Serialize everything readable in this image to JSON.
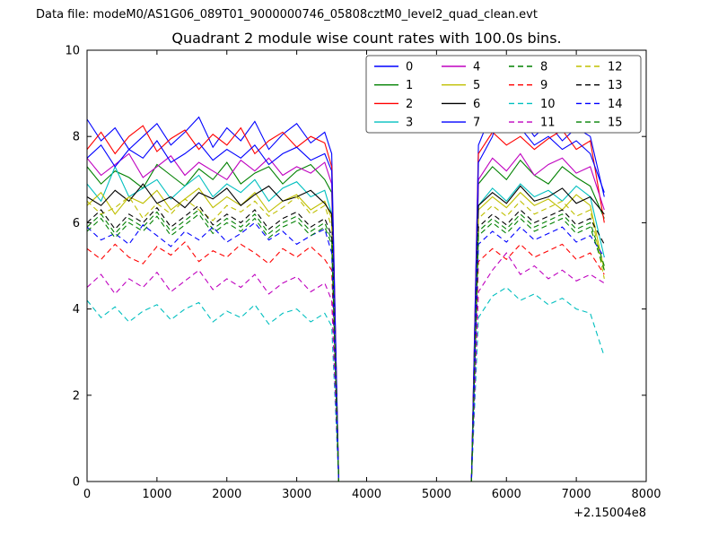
{
  "header": {
    "data_file": "Data file: modeM0/AS1G06_089T01_9000000746_05808cztM0_level2_quad_clean.evt"
  },
  "chart_data": {
    "type": "line",
    "title": "Quadrant 2 module wise count rates with 100.0s bins.",
    "xlabel": "",
    "ylabel": "",
    "xlim": [
      0,
      8000
    ],
    "ylim": [
      0,
      10
    ],
    "xticks": [
      0,
      1000,
      2000,
      3000,
      4000,
      5000,
      6000,
      7000,
      8000
    ],
    "yticks": [
      0,
      2,
      4,
      6,
      8,
      10
    ],
    "x_axis_offset": "+2.15004e8",
    "grid": false,
    "legend": {
      "position": "upper center-right",
      "columns": 4
    },
    "x": [
      0,
      200,
      400,
      600,
      800,
      1000,
      1200,
      1400,
      1600,
      1800,
      2000,
      2200,
      2400,
      2600,
      2800,
      3000,
      3200,
      3400,
      3500,
      3600,
      5500,
      5600,
      5800,
      6000,
      6200,
      6400,
      6600,
      6800,
      7000,
      7200,
      7400
    ],
    "series": [
      {
        "name": "0",
        "color": "#0000ff",
        "dash": "solid",
        "values": [
          8.4,
          7.9,
          8.2,
          7.7,
          8.0,
          8.3,
          7.8,
          8.1,
          8.45,
          7.75,
          8.2,
          7.9,
          8.35,
          7.7,
          8.05,
          8.3,
          7.85,
          8.1,
          7.6,
          0,
          0,
          7.8,
          8.6,
          8.2,
          8.45,
          8.0,
          8.3,
          7.9,
          8.2,
          8.0,
          6.6
        ]
      },
      {
        "name": "1",
        "color": "#008000",
        "dash": "solid",
        "values": [
          7.3,
          6.9,
          7.2,
          7.05,
          6.8,
          7.35,
          7.1,
          6.85,
          7.25,
          7.0,
          7.4,
          6.9,
          7.15,
          7.3,
          6.9,
          7.2,
          7.35,
          7.0,
          6.7,
          0,
          0,
          6.9,
          7.3,
          7.0,
          7.45,
          7.1,
          6.9,
          7.3,
          7.05,
          6.85,
          6.1
        ]
      },
      {
        "name": "2",
        "color": "#ff0000",
        "dash": "solid",
        "values": [
          7.7,
          8.1,
          7.6,
          8.0,
          8.25,
          7.65,
          7.95,
          8.15,
          7.7,
          8.05,
          7.8,
          8.2,
          7.6,
          7.9,
          8.1,
          7.75,
          8.0,
          7.85,
          7.3,
          0,
          0,
          7.6,
          8.1,
          7.8,
          8.0,
          7.7,
          7.95,
          8.15,
          7.7,
          7.9,
          6.0
        ]
      },
      {
        "name": "3",
        "color": "#00bfbf",
        "dash": "solid",
        "values": [
          6.9,
          6.5,
          7.3,
          6.6,
          6.8,
          7.0,
          6.55,
          6.85,
          7.1,
          6.6,
          6.9,
          6.7,
          7.0,
          6.5,
          6.8,
          6.95,
          6.6,
          6.75,
          6.2,
          0,
          0,
          6.4,
          6.8,
          6.5,
          6.9,
          6.6,
          6.75,
          6.5,
          6.85,
          6.6,
          5.2
        ]
      },
      {
        "name": "4",
        "color": "#bf00bf",
        "dash": "solid",
        "values": [
          7.5,
          7.1,
          7.35,
          7.6,
          7.05,
          7.3,
          7.55,
          7.1,
          7.4,
          7.2,
          7.0,
          7.45,
          7.2,
          7.5,
          7.1,
          7.3,
          7.15,
          7.4,
          6.9,
          0,
          0,
          7.0,
          7.5,
          7.2,
          7.6,
          7.1,
          7.35,
          7.5,
          7.15,
          7.3,
          6.3
        ]
      },
      {
        "name": "5",
        "color": "#bfbf00",
        "dash": "solid",
        "values": [
          6.4,
          6.7,
          6.2,
          6.6,
          6.45,
          6.75,
          6.3,
          6.55,
          6.8,
          6.35,
          6.6,
          6.4,
          6.7,
          6.25,
          6.5,
          6.65,
          6.3,
          6.5,
          6.1,
          0,
          0,
          6.3,
          6.6,
          6.35,
          6.7,
          6.4,
          6.55,
          6.3,
          6.65,
          6.4,
          4.9
        ]
      },
      {
        "name": "6",
        "color": "#000000",
        "dash": "solid",
        "values": [
          6.6,
          6.4,
          6.75,
          6.5,
          6.9,
          6.45,
          6.6,
          6.35,
          6.7,
          6.55,
          6.8,
          6.4,
          6.65,
          6.85,
          6.5,
          6.6,
          6.75,
          6.45,
          6.2,
          0,
          0,
          6.4,
          6.7,
          6.45,
          6.85,
          6.5,
          6.6,
          6.8,
          6.45,
          6.6,
          6.2
        ]
      },
      {
        "name": "7",
        "color": "#0000ff",
        "dash": "solid",
        "values": [
          7.5,
          7.8,
          7.3,
          7.7,
          7.5,
          7.9,
          7.4,
          7.6,
          7.85,
          7.45,
          7.7,
          7.5,
          7.8,
          7.35,
          7.6,
          7.75,
          7.45,
          7.6,
          7.2,
          0,
          0,
          7.4,
          8.0,
          9.3,
          8.2,
          7.8,
          8.0,
          7.7,
          7.9,
          7.6,
          6.7
        ]
      },
      {
        "name": "8",
        "color": "#008000",
        "dash": "dashed",
        "values": [
          5.9,
          6.2,
          5.75,
          6.1,
          5.9,
          6.25,
          5.8,
          6.05,
          6.3,
          5.85,
          6.1,
          5.9,
          6.2,
          5.75,
          6.0,
          6.15,
          5.8,
          6.0,
          5.6,
          0,
          0,
          5.8,
          6.1,
          5.85,
          6.2,
          5.9,
          6.05,
          6.2,
          5.85,
          6.0,
          5.0
        ]
      },
      {
        "name": "9",
        "color": "#ff0000",
        "dash": "dashed",
        "values": [
          5.4,
          5.15,
          5.5,
          5.2,
          5.05,
          5.45,
          5.25,
          5.55,
          5.1,
          5.35,
          5.2,
          5.5,
          5.3,
          5.05,
          5.4,
          5.2,
          5.45,
          5.15,
          4.9,
          0,
          0,
          5.1,
          5.4,
          5.15,
          5.5,
          5.2,
          5.35,
          5.5,
          5.15,
          5.3,
          4.8
        ]
      },
      {
        "name": "10",
        "color": "#00bfbf",
        "dash": "dashed",
        "values": [
          4.2,
          3.8,
          4.05,
          3.7,
          3.95,
          4.1,
          3.75,
          4.0,
          4.15,
          3.7,
          3.95,
          3.8,
          4.1,
          3.65,
          3.9,
          4.0,
          3.7,
          3.9,
          3.6,
          0,
          0,
          3.8,
          4.3,
          4.5,
          4.2,
          4.35,
          4.1,
          4.25,
          4.0,
          3.9,
          2.9
        ]
      },
      {
        "name": "11",
        "color": "#bf00bf",
        "dash": "dashed",
        "values": [
          4.5,
          4.8,
          4.35,
          4.7,
          4.5,
          4.85,
          4.4,
          4.65,
          4.9,
          4.45,
          4.7,
          4.5,
          4.8,
          4.35,
          4.6,
          4.75,
          4.4,
          4.6,
          4.2,
          0,
          0,
          4.4,
          4.9,
          5.3,
          4.8,
          5.0,
          4.7,
          4.9,
          4.65,
          4.8,
          4.6
        ]
      },
      {
        "name": "12",
        "color": "#bfbf00",
        "dash": "dashed",
        "values": [
          6.5,
          6.2,
          6.35,
          6.6,
          6.1,
          6.45,
          6.2,
          6.55,
          6.3,
          6.05,
          6.4,
          6.25,
          6.5,
          6.15,
          6.35,
          6.6,
          6.2,
          6.4,
          5.9,
          0,
          0,
          6.1,
          6.4,
          6.15,
          6.5,
          6.2,
          6.35,
          6.5,
          6.15,
          6.3,
          4.7
        ]
      },
      {
        "name": "13",
        "color": "#000000",
        "dash": "dashed",
        "values": [
          6.0,
          6.3,
          5.85,
          6.2,
          6.0,
          6.35,
          5.9,
          6.15,
          6.4,
          5.95,
          6.2,
          6.0,
          6.3,
          5.85,
          6.1,
          6.25,
          5.9,
          6.1,
          5.7,
          0,
          0,
          5.9,
          6.2,
          5.95,
          6.3,
          6.0,
          6.15,
          6.3,
          5.95,
          6.1,
          5.5
        ]
      },
      {
        "name": "14",
        "color": "#0000ff",
        "dash": "dashed",
        "values": [
          5.9,
          5.6,
          5.75,
          5.5,
          5.95,
          5.7,
          5.45,
          5.8,
          5.6,
          5.9,
          5.55,
          5.75,
          6.0,
          5.6,
          5.8,
          5.5,
          5.7,
          5.85,
          5.3,
          0,
          0,
          5.5,
          5.8,
          5.55,
          5.9,
          5.6,
          5.75,
          5.9,
          5.55,
          5.7,
          5.2
        ]
      },
      {
        "name": "15",
        "color": "#008000",
        "dash": "dashed",
        "values": [
          5.8,
          6.1,
          5.65,
          6.0,
          5.8,
          6.15,
          5.7,
          5.95,
          6.2,
          5.75,
          6.0,
          5.8,
          6.1,
          5.65,
          5.9,
          6.05,
          5.7,
          5.9,
          5.5,
          0,
          0,
          5.7,
          6.0,
          5.75,
          6.1,
          5.8,
          5.95,
          6.1,
          5.75,
          5.9,
          4.9
        ]
      }
    ]
  }
}
